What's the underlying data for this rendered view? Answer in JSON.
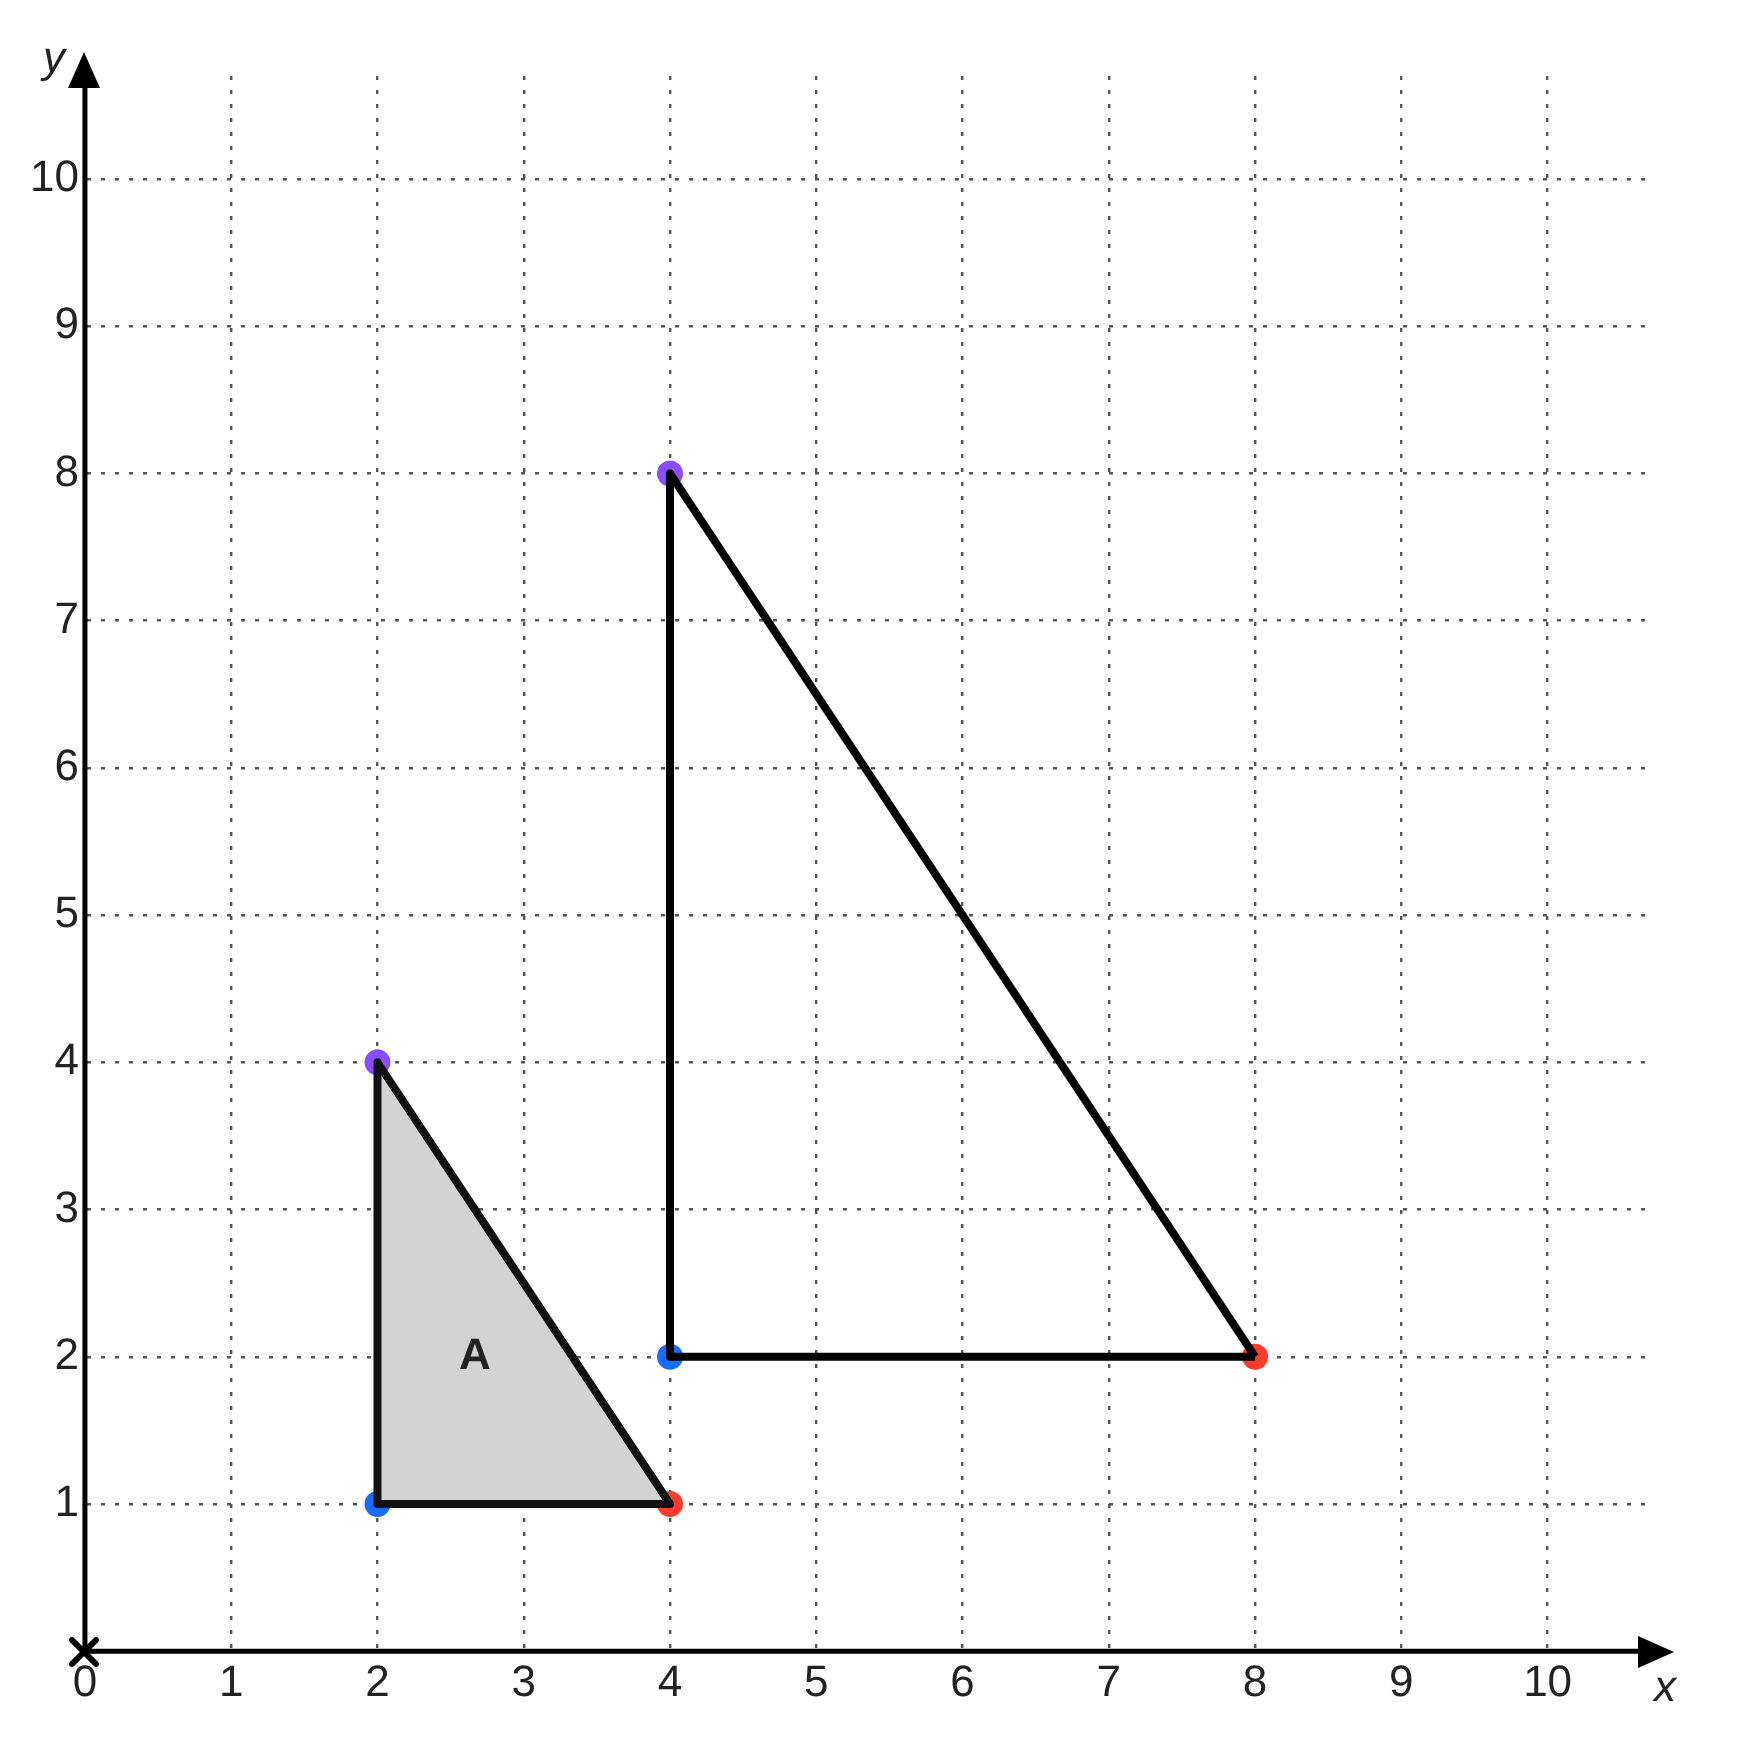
{
  "chart_data": {
    "type": "line",
    "xlabel": "x",
    "ylabel": "y",
    "xlim": [
      0,
      10.7
    ],
    "ylim": [
      0,
      10.7
    ],
    "xticks": [
      0,
      1,
      2,
      3,
      4,
      5,
      6,
      7,
      8,
      9,
      10
    ],
    "yticks": [
      {
        "value": 0,
        "label": null
      },
      1,
      2,
      3,
      4,
      5,
      6,
      7,
      8,
      9,
      10
    ],
    "grid": true,
    "marker": "circle",
    "line_style": "solid",
    "series": [
      {
        "type": "area",
        "color": "#d3d3d3",
        "marker": "none",
        "x": [
          2,
          2,
          4,
          2
        ],
        "values": [
          4,
          1,
          1,
          4
        ]
      },
      {
        "color": "#000000",
        "marker": "none",
        "x": [
          4,
          4,
          8
        ],
        "values": [
          8,
          2,
          2
        ]
      },
      {
        "color": "#000000",
        "marker": "none",
        "x": [
          4,
          8
        ],
        "values": [
          8,
          2
        ]
      },
      {
        "type": "scatter",
        "x": [
          2,
          2,
          4,
          4,
          4,
          8
        ],
        "values": [
          4,
          1,
          1,
          8,
          2,
          2
        ],
        "colors": [
          "#8a4dfa",
          "#1a6cff",
          "#ff3b30",
          "#8a4dfa",
          "#1a6cff",
          "#ff3b30"
        ]
      }
    ],
    "annotations": [
      "A"
    ]
  }
}
